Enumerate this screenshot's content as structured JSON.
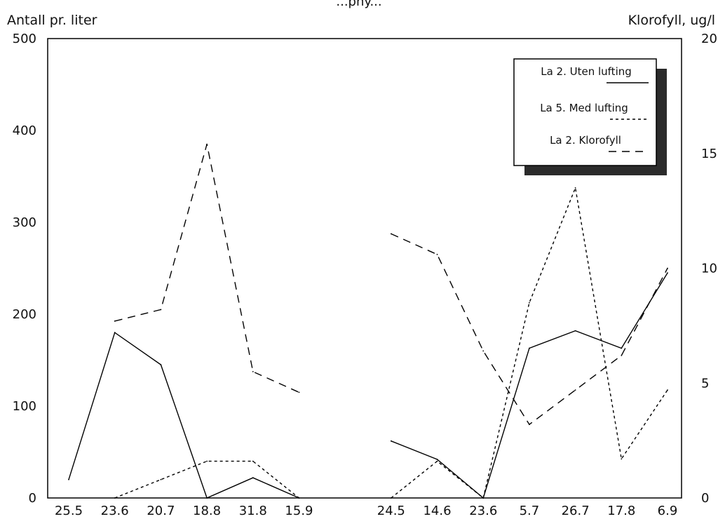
{
  "chart_data": {
    "type": "line",
    "title": "...phy...",
    "ylabel_left": "Antall pr. liter",
    "ylabel_right": "Klorofyll, ug/l",
    "y_left_range": [
      0,
      500
    ],
    "y_left_ticks": [
      "0",
      "100",
      "200",
      "300",
      "400",
      "500"
    ],
    "y_right_range": [
      0,
      20
    ],
    "y_right_ticks": [
      "0",
      "5",
      "10",
      "15",
      "20"
    ],
    "categories": [
      "25.5",
      "23.6",
      "20.7",
      "18.8",
      "31.8",
      "15.9",
      "",
      "24.5",
      "14.6",
      "23.6",
      "5.7",
      "26.7",
      "17.8",
      "6.9"
    ],
    "grid": false,
    "legend_position": "top-right",
    "series": [
      {
        "name": "La 2. Uten lufting",
        "axis": "left",
        "style": "solid",
        "values": [
          20,
          180,
          145,
          0,
          22,
          0,
          null,
          62,
          42,
          0,
          163,
          182,
          163,
          245
        ]
      },
      {
        "name": "La 5. Med lufting",
        "axis": "right",
        "style": "dotted",
        "values": [
          null,
          0,
          0.8,
          1.6,
          1.6,
          0,
          null,
          0,
          1.6,
          0,
          8.5,
          13.5,
          1.7,
          4.7
        ]
      },
      {
        "name": "La 2. Klorofyll",
        "axis": "right",
        "style": "dashed",
        "values": [
          null,
          7.7,
          8.2,
          15.4,
          5.5,
          4.6,
          null,
          11.5,
          10.6,
          6.4,
          3.2,
          4.7,
          6.2,
          10
        ]
      }
    ]
  }
}
